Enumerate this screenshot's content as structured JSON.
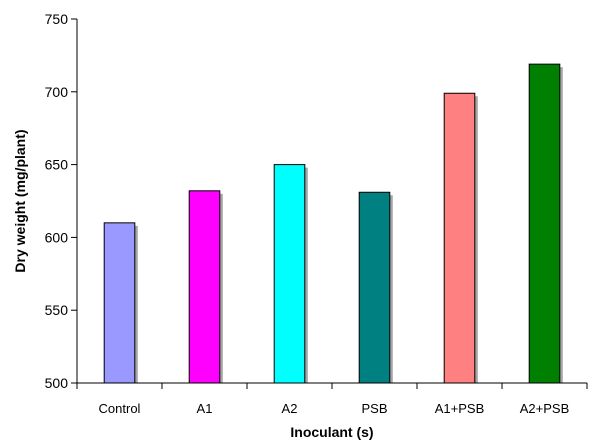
{
  "chart_data": {
    "type": "bar",
    "title": "",
    "xlabel": "Inoculant (s)",
    "ylabel": "Dry weight (mg/plant)",
    "ylim": [
      500,
      750
    ],
    "yticks": [
      500,
      550,
      600,
      650,
      700,
      750
    ],
    "grid": false,
    "legend": "none",
    "categories": [
      "Control",
      "A1",
      "A2",
      "PSB",
      "A1+PSB",
      "A2+PSB"
    ],
    "values": [
      610,
      632,
      650,
      631,
      699,
      719
    ],
    "colors": [
      "#9999FF",
      "#FF00FF",
      "#00FFFF",
      "#008080",
      "#FF8080",
      "#008000"
    ]
  }
}
